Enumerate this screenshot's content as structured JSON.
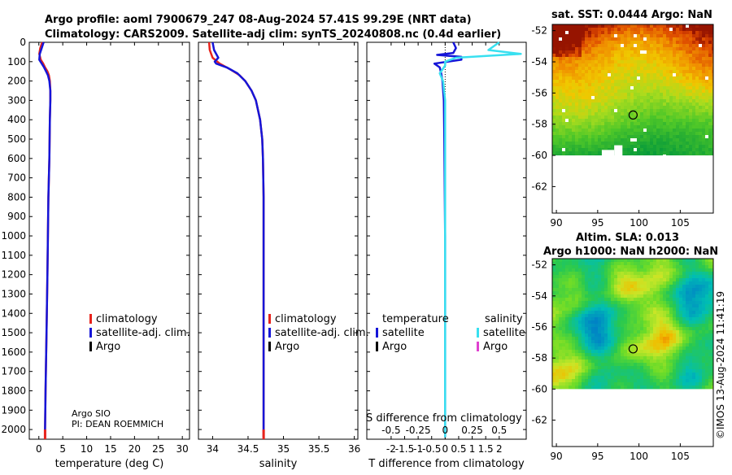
{
  "title": {
    "line1": "Argo profile: aoml 7900679_247 08-Aug-2024 57.41S 99.29E (NRT data)",
    "line2": "Climatology: CARS2009. Satellite-adj clim: synTS_20240808.nc (0.4d earlier)"
  },
  "colors": {
    "climatology": "#e8231c",
    "satellite_adj": "#1515d8",
    "argo": "#000000",
    "satellite_s": "#38e0f0",
    "argo_s": "#e040d0"
  },
  "chart_data": [
    {
      "name": "temperature",
      "type": "line",
      "xlabel": "temperature (deg C)",
      "ylabel": "",
      "xlim": [
        -2,
        31.5
      ],
      "ylim": [
        2050,
        0
      ],
      "xticks": [
        "0",
        "5",
        "10",
        "15",
        "20",
        "25",
        "30"
      ],
      "xtick_values": [
        0,
        5,
        10,
        15,
        20,
        25,
        30
      ],
      "yticks": [
        "0",
        "100",
        "200",
        "300",
        "400",
        "500",
        "600",
        "700",
        "800",
        "900",
        "1000",
        "1100",
        "1200",
        "1300",
        "1400",
        "1500",
        "1600",
        "1700",
        "1800",
        "1900",
        "2000"
      ],
      "ytick_values": [
        0,
        100,
        200,
        300,
        400,
        500,
        600,
        700,
        800,
        900,
        1000,
        1100,
        1200,
        1300,
        1400,
        1500,
        1600,
        1700,
        1800,
        1900,
        2000
      ],
      "series": [
        {
          "name": "climatology",
          "depth": [
            0,
            30,
            60,
            90,
            110,
            130,
            150,
            170,
            200,
            250,
            300,
            400,
            600,
            800,
            1000,
            1200,
            1500,
            1800,
            2000,
            2040
          ],
          "values": [
            0.7,
            0.3,
            0.1,
            0.4,
            0.9,
            1.3,
            1.8,
            2.1,
            2.3,
            2.4,
            2.4,
            2.3,
            2.2,
            2.0,
            1.9,
            1.8,
            1.6,
            1.4,
            1.3,
            1.3
          ]
        },
        {
          "name": "satellite-adj. clim.",
          "depth": [
            0,
            30,
            60,
            90,
            110,
            130,
            150,
            170,
            200,
            250,
            300,
            400,
            600,
            800,
            1000,
            1200,
            1500,
            1800,
            2000,
            2040
          ],
          "values": [
            1.0,
            0.6,
            0.2,
            0.1,
            0.6,
            1.1,
            1.5,
            1.9,
            2.2,
            2.4,
            2.4,
            2.3,
            2.2,
            2.0,
            1.9,
            1.8,
            1.6,
            1.4,
            1.3,
            1.3
          ]
        }
      ],
      "legend": [
        "climatology",
        "satellite-adj. clim.",
        "Argo"
      ],
      "annotations": [
        "Argo SIO",
        "PI: DEAN ROEMMICH"
      ]
    },
    {
      "name": "salinity",
      "type": "line",
      "xlabel": "salinity",
      "xlim": [
        33.8,
        36.05
      ],
      "ylim": [
        2050,
        0
      ],
      "xticks": [
        "34",
        "34.5",
        "35",
        "35.5",
        "36"
      ],
      "xtick_values": [
        34,
        34.5,
        35,
        35.5,
        36
      ],
      "series": [
        {
          "name": "climatology",
          "depth": [
            0,
            40,
            80,
            110,
            140,
            170,
            200,
            250,
            300,
            400,
            500,
            600,
            800,
            1000,
            1500,
            2040
          ],
          "values": [
            33.95,
            33.96,
            34.0,
            34.1,
            34.25,
            34.38,
            34.46,
            34.55,
            34.61,
            34.67,
            34.7,
            34.71,
            34.72,
            34.72,
            34.72,
            34.72
          ]
        },
        {
          "name": "satellite-adj. clim.",
          "depth": [
            0,
            40,
            80,
            100,
            110,
            130,
            160,
            200,
            250,
            300,
            400,
            500,
            600,
            800,
            1000,
            1500,
            2040
          ],
          "values": [
            34.0,
            34.02,
            34.08,
            34.03,
            34.05,
            34.2,
            34.35,
            34.46,
            34.55,
            34.61,
            34.67,
            34.7,
            34.71,
            34.72,
            34.72,
            34.72,
            34.72
          ]
        }
      ],
      "legend": [
        "climatology",
        "satellite-adj. clim.",
        "Argo"
      ]
    },
    {
      "name": "difference",
      "type": "line",
      "xlabel": "T difference from climatology",
      "top_label": "S difference from climatology",
      "xlim": [
        -2.9,
        3.0
      ],
      "ylim": [
        2050,
        0
      ],
      "xticks": [
        "-2",
        "-1.5",
        "-1",
        "-0.5",
        "0",
        "0.5",
        "1",
        "1.5",
        "2"
      ],
      "xtick_values": [
        -2,
        -1.5,
        -1,
        -0.5,
        0,
        0.5,
        1,
        1.5,
        2
      ],
      "sticks": [
        "-0.5",
        "-0.25",
        "0",
        "0.25",
        "0.5"
      ],
      "stick_values": [
        -2,
        -1,
        0,
        1,
        2
      ],
      "series": [
        {
          "name": "satellite",
          "variable": "temperature",
          "depth": [
            0,
            30,
            55,
            65,
            75,
            90,
            110,
            130,
            160,
            200,
            300,
            500,
            1000,
            2040
          ],
          "values": [
            0.3,
            0.4,
            0.3,
            -0.3,
            0.6,
            0.6,
            -0.4,
            -0.2,
            -0.15,
            -0.1,
            -0.05,
            -0.03,
            0,
            0
          ]
        },
        {
          "name": "satellite",
          "variable": "salinity",
          "depth": [
            0,
            40,
            60,
            80,
            100,
            120,
            160,
            200,
            300,
            500,
            1000,
            2040
          ],
          "values": [
            0.5,
            0.4,
            0.7,
            0.1,
            0.0,
            0.0,
            -0.05,
            -0.02,
            0,
            0,
            0,
            0
          ]
        }
      ],
      "legend_temperature": {
        "heading": "temperature",
        "items": [
          "satellite",
          "Argo"
        ]
      },
      "legend_salinity": {
        "heading": "salinity",
        "items": [
          "satellite",
          "Argo"
        ]
      }
    },
    {
      "name": "sst_map",
      "type": "heatmap",
      "title": "sat. SST: 0.0444 Argo: NaN",
      "xlim": [
        89.5,
        109
      ],
      "ylim": [
        -63.7,
        -51.6
      ],
      "xticks": [
        "90",
        "95",
        "100",
        "105"
      ],
      "xtick_values": [
        90,
        95,
        100,
        105
      ],
      "yticks": [
        "-52",
        "-54",
        "-56",
        "-58",
        "-60",
        "-62"
      ],
      "ytick_values": [
        -52,
        -54,
        -56,
        -58,
        -60,
        -62
      ],
      "float_position": [
        99.29,
        -57.41
      ]
    },
    {
      "name": "sla_map",
      "type": "heatmap",
      "title_line1": "Altim. SLA: 0.013",
      "title_line2": "Argo h1000: NaN h2000: NaN",
      "xlim": [
        89.5,
        109
      ],
      "ylim": [
        -63.7,
        -51.6
      ],
      "xticks": [
        "90",
        "95",
        "100",
        "105"
      ],
      "xtick_values": [
        90,
        95,
        100,
        105
      ],
      "yticks": [
        "-52",
        "-54",
        "-56",
        "-58",
        "-60",
        "-62"
      ],
      "ytick_values": [
        -52,
        -54,
        -56,
        -58,
        -60,
        -62
      ],
      "float_position": [
        99.29,
        -57.41
      ]
    }
  ],
  "footer": "©IMOS 13-Aug-2024 11:41:19"
}
